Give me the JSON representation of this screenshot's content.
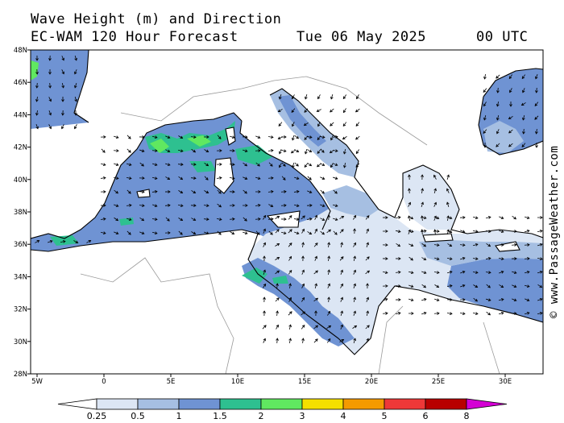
{
  "header": {
    "line1": "Wave Height (m) and Direction",
    "model": "EC-WAM 120 Hour Forecast",
    "date": "Tue 06 May 2025",
    "time": "00 UTC"
  },
  "credit": "© www.PassageWeather.com",
  "axes": {
    "lat_labels": [
      "48N",
      "46N",
      "44N",
      "42N",
      "40N",
      "38N",
      "36N",
      "34N",
      "32N",
      "30N",
      "28N"
    ],
    "lon_labels": [
      "5W",
      "0",
      "5E",
      "10E",
      "15E",
      "20E",
      "25E",
      "30E"
    ]
  },
  "legend": {
    "labels": [
      "0.25",
      "0.5",
      "1",
      "1.5",
      "2",
      "3",
      "4",
      "5",
      "6",
      "8"
    ],
    "colors": [
      "#ffffff",
      "#dce6f4",
      "#a6bfe2",
      "#6f93d3",
      "#2ec090",
      "#60e860",
      "#f4e000",
      "#f49a00",
      "#ee3838",
      "#b80000",
      "#d400d4"
    ]
  },
  "colors": {
    "sea_low": "#dce6f4",
    "sea_mid": "#a6bfe2",
    "sea_high": "#6f93d3",
    "sea_peak": "#2ec090",
    "sea_max": "#60e860"
  }
}
